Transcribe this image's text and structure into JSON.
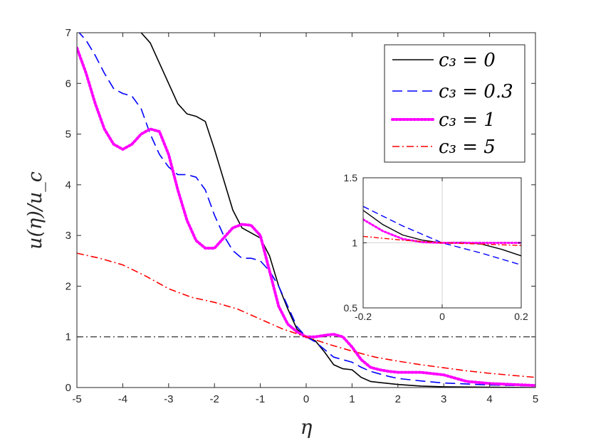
{
  "chart_data": [
    {
      "id": "main",
      "type": "line",
      "xlabel": "η",
      "ylabel": "u(η)/u_c",
      "xlim": [
        -5,
        5
      ],
      "ylim": [
        0,
        7
      ],
      "xticks": [
        -5,
        -4,
        -3,
        -2,
        -1,
        0,
        1,
        2,
        3,
        4,
        5
      ],
      "yticks": [
        0,
        1,
        2,
        3,
        4,
        5,
        6,
        7
      ],
      "xtick_labels": [
        "-5",
        "-4",
        "-3",
        "-2",
        "-1",
        "0",
        "1",
        "2",
        "3",
        "4",
        "5"
      ],
      "ytick_labels": [
        "0",
        "1",
        "2",
        "3",
        "4",
        "5",
        "6",
        "7"
      ],
      "legend_position": "top-right",
      "reference_line": {
        "y": 1,
        "style": "dash-dot",
        "color": "#000000"
      },
      "series": [
        {
          "name": "c3 = 0",
          "legend_label": "c₃ = 0",
          "color": "#000000",
          "style": "solid",
          "x": [
            -3.6,
            -3.4,
            -3.2,
            -3.0,
            -2.8,
            -2.6,
            -2.4,
            -2.2,
            -2.0,
            -1.8,
            -1.6,
            -1.4,
            -1.2,
            -1.0,
            -0.8,
            -0.6,
            -0.4,
            -0.2,
            0.0,
            0.2,
            0.4,
            0.6,
            0.8,
            1.0,
            1.2,
            1.4,
            1.6,
            1.8,
            2.0,
            2.5,
            3.0,
            4.0,
            5.0
          ],
          "y": [
            7.0,
            6.8,
            6.4,
            6.0,
            5.6,
            5.4,
            5.35,
            5.25,
            4.7,
            4.1,
            3.5,
            3.15,
            3.05,
            2.95,
            2.6,
            2.0,
            1.55,
            1.15,
            1.0,
            0.92,
            0.7,
            0.45,
            0.37,
            0.35,
            0.2,
            0.12,
            0.1,
            0.08,
            0.06,
            0.03,
            0.015,
            0.005,
            0.0
          ]
        },
        {
          "name": "c3 = 0.3",
          "legend_label": "c₃ = 0.3",
          "color": "#0000ff",
          "style": "dashed",
          "x": [
            -5.0,
            -4.8,
            -4.6,
            -4.4,
            -4.2,
            -4.0,
            -3.8,
            -3.6,
            -3.4,
            -3.2,
            -3.0,
            -2.8,
            -2.6,
            -2.4,
            -2.2,
            -2.0,
            -1.8,
            -1.6,
            -1.4,
            -1.2,
            -1.0,
            -0.8,
            -0.6,
            -0.4,
            -0.2,
            0.0,
            0.2,
            0.4,
            0.6,
            0.8,
            1.0,
            1.2,
            1.4,
            1.6,
            1.8,
            2.0,
            2.5,
            3.0,
            4.0,
            5.0
          ],
          "y": [
            7.05,
            6.85,
            6.55,
            6.2,
            5.9,
            5.8,
            5.75,
            5.5,
            5.0,
            4.6,
            4.35,
            4.2,
            4.2,
            4.15,
            3.9,
            3.4,
            3.0,
            2.7,
            2.55,
            2.55,
            2.5,
            2.3,
            2.0,
            1.6,
            1.2,
            1.0,
            0.9,
            0.75,
            0.6,
            0.55,
            0.5,
            0.4,
            0.32,
            0.27,
            0.22,
            0.18,
            0.13,
            0.09,
            0.05,
            0.03
          ]
        },
        {
          "name": "c3 = 1",
          "legend_label": "c₃ = 1",
          "color": "#ff00ff",
          "style": "dotted",
          "x": [
            -5.0,
            -4.8,
            -4.6,
            -4.4,
            -4.2,
            -4.0,
            -3.8,
            -3.6,
            -3.4,
            -3.2,
            -3.0,
            -2.8,
            -2.6,
            -2.4,
            -2.2,
            -2.0,
            -1.8,
            -1.6,
            -1.4,
            -1.2,
            -1.0,
            -0.8,
            -0.6,
            -0.4,
            -0.2,
            0.0,
            0.2,
            0.4,
            0.6,
            0.8,
            1.0,
            1.2,
            1.4,
            1.6,
            1.8,
            2.0,
            2.5,
            3.0,
            3.5,
            4.0,
            4.5,
            5.0
          ],
          "y": [
            6.7,
            6.2,
            5.6,
            5.1,
            4.8,
            4.7,
            4.8,
            5.0,
            5.1,
            5.05,
            4.6,
            3.9,
            3.3,
            2.9,
            2.75,
            2.75,
            2.95,
            3.15,
            3.22,
            3.2,
            3.0,
            2.3,
            1.6,
            1.25,
            1.1,
            1.0,
            1.0,
            1.03,
            1.05,
            1.0,
            0.8,
            0.55,
            0.4,
            0.35,
            0.32,
            0.3,
            0.3,
            0.25,
            0.12,
            0.08,
            0.06,
            0.04
          ]
        },
        {
          "name": "c3 = 5",
          "legend_label": "c₃ = 5",
          "color": "#ff0000",
          "style": "dash-dot",
          "x": [
            -5.0,
            -4.5,
            -4.0,
            -3.5,
            -3.0,
            -2.5,
            -2.0,
            -1.5,
            -1.0,
            -0.5,
            0.0,
            0.5,
            1.0,
            1.5,
            2.0,
            2.5,
            3.0,
            3.5,
            4.0,
            4.5,
            5.0
          ],
          "y": [
            2.65,
            2.55,
            2.42,
            2.2,
            1.95,
            1.78,
            1.68,
            1.55,
            1.35,
            1.15,
            1.0,
            0.85,
            0.72,
            0.6,
            0.52,
            0.45,
            0.39,
            0.33,
            0.28,
            0.24,
            0.2
          ]
        }
      ]
    },
    {
      "id": "inset",
      "type": "line",
      "xlim": [
        -0.2,
        0.2
      ],
      "ylim": [
        0.5,
        1.5
      ],
      "xticks": [
        -0.2,
        0,
        0.2
      ],
      "yticks": [
        0.5,
        1,
        1.5
      ],
      "xtick_labels": [
        "-0.2",
        "0",
        "0.2"
      ],
      "ytick_labels": [
        "0.5",
        "1",
        "1.5"
      ],
      "reference_lines": [
        {
          "y": 1
        },
        {
          "x": 0
        }
      ],
      "series": [
        {
          "name": "c3 = 0",
          "color": "#000000",
          "style": "solid",
          "x": [
            -0.2,
            -0.15,
            -0.1,
            -0.05,
            0.0,
            0.05,
            0.1,
            0.15,
            0.2
          ],
          "y": [
            1.25,
            1.14,
            1.06,
            1.02,
            1.0,
            1.005,
            0.99,
            0.95,
            0.9
          ]
        },
        {
          "name": "c3 = 0.3",
          "color": "#0000ff",
          "style": "dashed",
          "x": [
            -0.2,
            -0.1,
            0.0,
            0.1,
            0.2
          ],
          "y": [
            1.28,
            1.13,
            1.0,
            0.92,
            0.83
          ]
        },
        {
          "name": "c3 = 1",
          "color": "#ff00ff",
          "style": "dotted",
          "x": [
            -0.2,
            -0.15,
            -0.1,
            -0.05,
            0.0,
            0.05,
            0.1,
            0.15,
            0.2
          ],
          "y": [
            1.18,
            1.09,
            1.03,
            1.005,
            1.0,
            1.0,
            1.0,
            1.0,
            1.0
          ]
        },
        {
          "name": "c3 = 5",
          "color": "#ff0000",
          "style": "dash-dot",
          "x": [
            -0.2,
            -0.1,
            0.0,
            0.1,
            0.2
          ],
          "y": [
            1.05,
            1.02,
            1.0,
            0.99,
            0.98
          ]
        }
      ]
    }
  ]
}
